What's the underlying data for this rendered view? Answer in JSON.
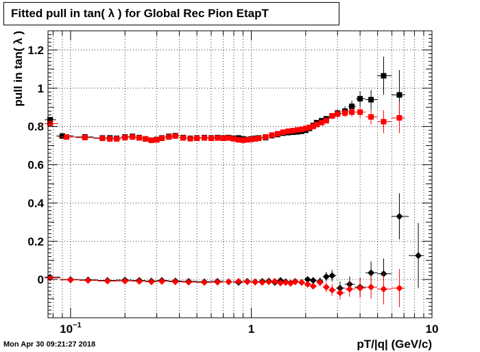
{
  "title": "Fitted pull in tan( λ ) for Global Rec Pion EtapT",
  "footer": "Mon Apr 30 09:21:27 2018",
  "colors": {
    "black_series": "#000000",
    "red_series": "#ff0000",
    "frame": "#000000",
    "grid": "#000000"
  },
  "chart_data": {
    "type": "scatter",
    "title": "Fitted pull in tan( λ ) for Global Rec Pion EtapT",
    "xlabel": "pT/|q| (GeV/c)",
    "ylabel": "pull in tan( λ )",
    "xscale": "log",
    "xlim": [
      0.075,
      10
    ],
    "ylim": [
      -0.2,
      1.3
    ],
    "grid": true,
    "x_ticks": [
      {
        "v": 0.1,
        "label": "10",
        "sup": "−1"
      },
      {
        "v": 1,
        "label": "1"
      },
      {
        "v": 10,
        "label": "10"
      }
    ],
    "y_ticks": [
      {
        "v": 0,
        "label": "0"
      },
      {
        "v": 0.2,
        "label": "0.2"
      },
      {
        "v": 0.4,
        "label": "0.4"
      },
      {
        "v": 0.6,
        "label": "0.6"
      },
      {
        "v": 0.8,
        "label": "0.8"
      },
      {
        "v": 1,
        "label": "1"
      },
      {
        "v": 1.2,
        "label": "1.2"
      }
    ],
    "series": [
      {
        "color": "#000000",
        "marker": "square",
        "points": [
          [
            0.077,
            0.835
          ],
          [
            0.09,
            0.75
          ],
          [
            0.12,
            0.745
          ],
          [
            0.15,
            0.74
          ],
          [
            0.165,
            0.74
          ],
          [
            0.18,
            0.738
          ],
          [
            0.2,
            0.745
          ],
          [
            0.22,
            0.748
          ],
          [
            0.24,
            0.742
          ],
          [
            0.26,
            0.735
          ],
          [
            0.28,
            0.728
          ],
          [
            0.3,
            0.732
          ],
          [
            0.32,
            0.74
          ],
          [
            0.35,
            0.748
          ],
          [
            0.38,
            0.752
          ],
          [
            0.42,
            0.742
          ],
          [
            0.46,
            0.738
          ],
          [
            0.5,
            0.74
          ],
          [
            0.55,
            0.742
          ],
          [
            0.6,
            0.74
          ],
          [
            0.65,
            0.742
          ],
          [
            0.7,
            0.74
          ],
          [
            0.75,
            0.742
          ],
          [
            0.8,
            0.738
          ],
          [
            0.85,
            0.74
          ],
          [
            0.9,
            0.735
          ],
          [
            0.95,
            0.732
          ],
          [
            1.0,
            0.735
          ],
          [
            1.05,
            0.738
          ],
          [
            1.1,
            0.74
          ],
          [
            1.2,
            0.742
          ],
          [
            1.3,
            0.752
          ],
          [
            1.4,
            0.758
          ],
          [
            1.5,
            0.765
          ],
          [
            1.6,
            0.768
          ],
          [
            1.7,
            0.77
          ],
          [
            1.8,
            0.772
          ],
          [
            1.9,
            0.775
          ],
          [
            2.0,
            0.78
          ],
          [
            2.1,
            0.79
          ],
          [
            2.2,
            0.805
          ],
          [
            2.3,
            0.82
          ],
          [
            2.45,
            0.83
          ],
          [
            2.6,
            0.84
          ],
          [
            2.8,
            0.855
          ],
          [
            3.0,
            0.87
          ],
          [
            3.3,
            0.88
          ],
          [
            3.6,
            0.905
          ],
          [
            4.0,
            0.945
          ],
          [
            4.6,
            0.94
          ],
          [
            5.4,
            1.065
          ],
          [
            6.6,
            0.965
          ]
        ],
        "yerr": [
          0.01,
          0.005,
          0.005,
          0.005,
          0.005,
          0.005,
          0.005,
          0.005,
          0.005,
          0.005,
          0.005,
          0.005,
          0.005,
          0.005,
          0.005,
          0.005,
          0.005,
          0.005,
          0.005,
          0.005,
          0.005,
          0.005,
          0.005,
          0.005,
          0.005,
          0.005,
          0.005,
          0.005,
          0.005,
          0.005,
          0.005,
          0.005,
          0.005,
          0.005,
          0.005,
          0.005,
          0.005,
          0.005,
          0.005,
          0.008,
          0.008,
          0.01,
          0.01,
          0.012,
          0.015,
          0.02,
          0.025,
          0.03,
          0.04,
          0.05,
          0.1,
          0.13
        ]
      },
      {
        "color": "#ff0000",
        "marker": "square",
        "points": [
          [
            0.077,
            0.815
          ],
          [
            0.095,
            0.745
          ],
          [
            0.12,
            0.742
          ],
          [
            0.15,
            0.738
          ],
          [
            0.165,
            0.735
          ],
          [
            0.18,
            0.735
          ],
          [
            0.2,
            0.742
          ],
          [
            0.22,
            0.745
          ],
          [
            0.24,
            0.74
          ],
          [
            0.26,
            0.735
          ],
          [
            0.28,
            0.728
          ],
          [
            0.3,
            0.73
          ],
          [
            0.32,
            0.738
          ],
          [
            0.35,
            0.745
          ],
          [
            0.38,
            0.75
          ],
          [
            0.42,
            0.74
          ],
          [
            0.46,
            0.736
          ],
          [
            0.5,
            0.738
          ],
          [
            0.55,
            0.74
          ],
          [
            0.6,
            0.738
          ],
          [
            0.65,
            0.74
          ],
          [
            0.7,
            0.738
          ],
          [
            0.75,
            0.74
          ],
          [
            0.8,
            0.735
          ],
          [
            0.85,
            0.73
          ],
          [
            0.9,
            0.728
          ],
          [
            0.95,
            0.73
          ],
          [
            1.0,
            0.732
          ],
          [
            1.05,
            0.735
          ],
          [
            1.1,
            0.738
          ],
          [
            1.2,
            0.745
          ],
          [
            1.3,
            0.755
          ],
          [
            1.4,
            0.762
          ],
          [
            1.5,
            0.77
          ],
          [
            1.6,
            0.775
          ],
          [
            1.7,
            0.778
          ],
          [
            1.8,
            0.782
          ],
          [
            1.9,
            0.785
          ],
          [
            2.0,
            0.79
          ],
          [
            2.1,
            0.795
          ],
          [
            2.2,
            0.8
          ],
          [
            2.3,
            0.81
          ],
          [
            2.45,
            0.82
          ],
          [
            2.6,
            0.83
          ],
          [
            2.8,
            0.855
          ],
          [
            3.0,
            0.865
          ],
          [
            3.3,
            0.87
          ],
          [
            3.6,
            0.875
          ],
          [
            4.0,
            0.875
          ],
          [
            4.6,
            0.85
          ],
          [
            5.4,
            0.825
          ],
          [
            6.6,
            0.845
          ]
        ],
        "yerr": [
          0.01,
          0.005,
          0.005,
          0.005,
          0.005,
          0.005,
          0.005,
          0.005,
          0.005,
          0.005,
          0.005,
          0.005,
          0.005,
          0.005,
          0.005,
          0.005,
          0.005,
          0.005,
          0.005,
          0.005,
          0.005,
          0.005,
          0.005,
          0.005,
          0.005,
          0.005,
          0.005,
          0.005,
          0.005,
          0.005,
          0.005,
          0.005,
          0.005,
          0.005,
          0.005,
          0.005,
          0.005,
          0.005,
          0.005,
          0.008,
          0.008,
          0.01,
          0.01,
          0.012,
          0.015,
          0.02,
          0.02,
          0.025,
          0.03,
          0.04,
          0.06,
          0.08
        ]
      },
      {
        "color": "#000000",
        "marker": "diamond",
        "points": [
          [
            0.077,
            0.012
          ],
          [
            0.1,
            0.0
          ],
          [
            0.125,
            -0.002
          ],
          [
            0.16,
            -0.005
          ],
          [
            0.2,
            -0.003
          ],
          [
            0.24,
            -0.005
          ],
          [
            0.28,
            -0.008
          ],
          [
            0.32,
            -0.005
          ],
          [
            0.38,
            -0.008
          ],
          [
            0.45,
            -0.01
          ],
          [
            0.55,
            -0.012
          ],
          [
            0.65,
            -0.01
          ],
          [
            0.75,
            -0.012
          ],
          [
            0.85,
            -0.015
          ],
          [
            0.95,
            -0.01
          ],
          [
            1.05,
            -0.012
          ],
          [
            1.15,
            -0.01
          ],
          [
            1.25,
            -0.008
          ],
          [
            1.35,
            -0.015
          ],
          [
            1.45,
            -0.005
          ],
          [
            1.55,
            -0.012
          ],
          [
            1.65,
            -0.018
          ],
          [
            1.75,
            -0.01
          ],
          [
            1.9,
            -0.015
          ],
          [
            2.05,
            0.0
          ],
          [
            2.2,
            -0.005
          ],
          [
            2.4,
            -0.01
          ],
          [
            2.6,
            0.015
          ],
          [
            2.8,
            0.02
          ],
          [
            3.1,
            -0.045
          ],
          [
            3.5,
            -0.025
          ],
          [
            4.0,
            -0.04
          ],
          [
            4.6,
            0.035
          ],
          [
            5.4,
            0.03
          ],
          [
            6.6,
            0.33
          ],
          [
            8.4,
            0.125
          ]
        ],
        "yerr": [
          0.01,
          0.008,
          0.008,
          0.008,
          0.008,
          0.008,
          0.008,
          0.008,
          0.008,
          0.008,
          0.008,
          0.008,
          0.008,
          0.008,
          0.008,
          0.008,
          0.008,
          0.008,
          0.008,
          0.008,
          0.008,
          0.008,
          0.008,
          0.01,
          0.015,
          0.015,
          0.02,
          0.025,
          0.03,
          0.035,
          0.04,
          0.05,
          0.06,
          0.08,
          0.12,
          0.17
        ]
      },
      {
        "color": "#ff0000",
        "marker": "diamond",
        "points": [
          [
            0.077,
            0.008
          ],
          [
            0.1,
            -0.002
          ],
          [
            0.125,
            -0.005
          ],
          [
            0.16,
            -0.008
          ],
          [
            0.2,
            -0.008
          ],
          [
            0.24,
            -0.01
          ],
          [
            0.28,
            -0.012
          ],
          [
            0.32,
            -0.01
          ],
          [
            0.38,
            -0.012
          ],
          [
            0.45,
            -0.014
          ],
          [
            0.55,
            -0.015
          ],
          [
            0.65,
            -0.014
          ],
          [
            0.75,
            -0.012
          ],
          [
            0.85,
            -0.01
          ],
          [
            0.95,
            -0.012
          ],
          [
            1.05,
            -0.014
          ],
          [
            1.15,
            -0.015
          ],
          [
            1.25,
            -0.012
          ],
          [
            1.35,
            -0.01
          ],
          [
            1.45,
            -0.018
          ],
          [
            1.55,
            -0.015
          ],
          [
            1.65,
            -0.02
          ],
          [
            1.75,
            -0.012
          ],
          [
            1.9,
            -0.015
          ],
          [
            2.05,
            -0.025
          ],
          [
            2.2,
            -0.035
          ],
          [
            2.4,
            -0.015
          ],
          [
            2.6,
            -0.04
          ],
          [
            2.8,
            -0.055
          ],
          [
            3.1,
            -0.07
          ],
          [
            3.5,
            -0.05
          ],
          [
            4.0,
            -0.045
          ],
          [
            4.6,
            -0.04
          ],
          [
            5.4,
            -0.05
          ],
          [
            6.6,
            -0.045
          ]
        ],
        "yerr": [
          0.01,
          0.008,
          0.008,
          0.008,
          0.008,
          0.008,
          0.008,
          0.008,
          0.008,
          0.008,
          0.008,
          0.008,
          0.008,
          0.008,
          0.008,
          0.008,
          0.008,
          0.008,
          0.008,
          0.008,
          0.008,
          0.008,
          0.008,
          0.01,
          0.012,
          0.015,
          0.02,
          0.025,
          0.03,
          0.035,
          0.04,
          0.05,
          0.06,
          0.08,
          0.1
        ]
      }
    ]
  }
}
